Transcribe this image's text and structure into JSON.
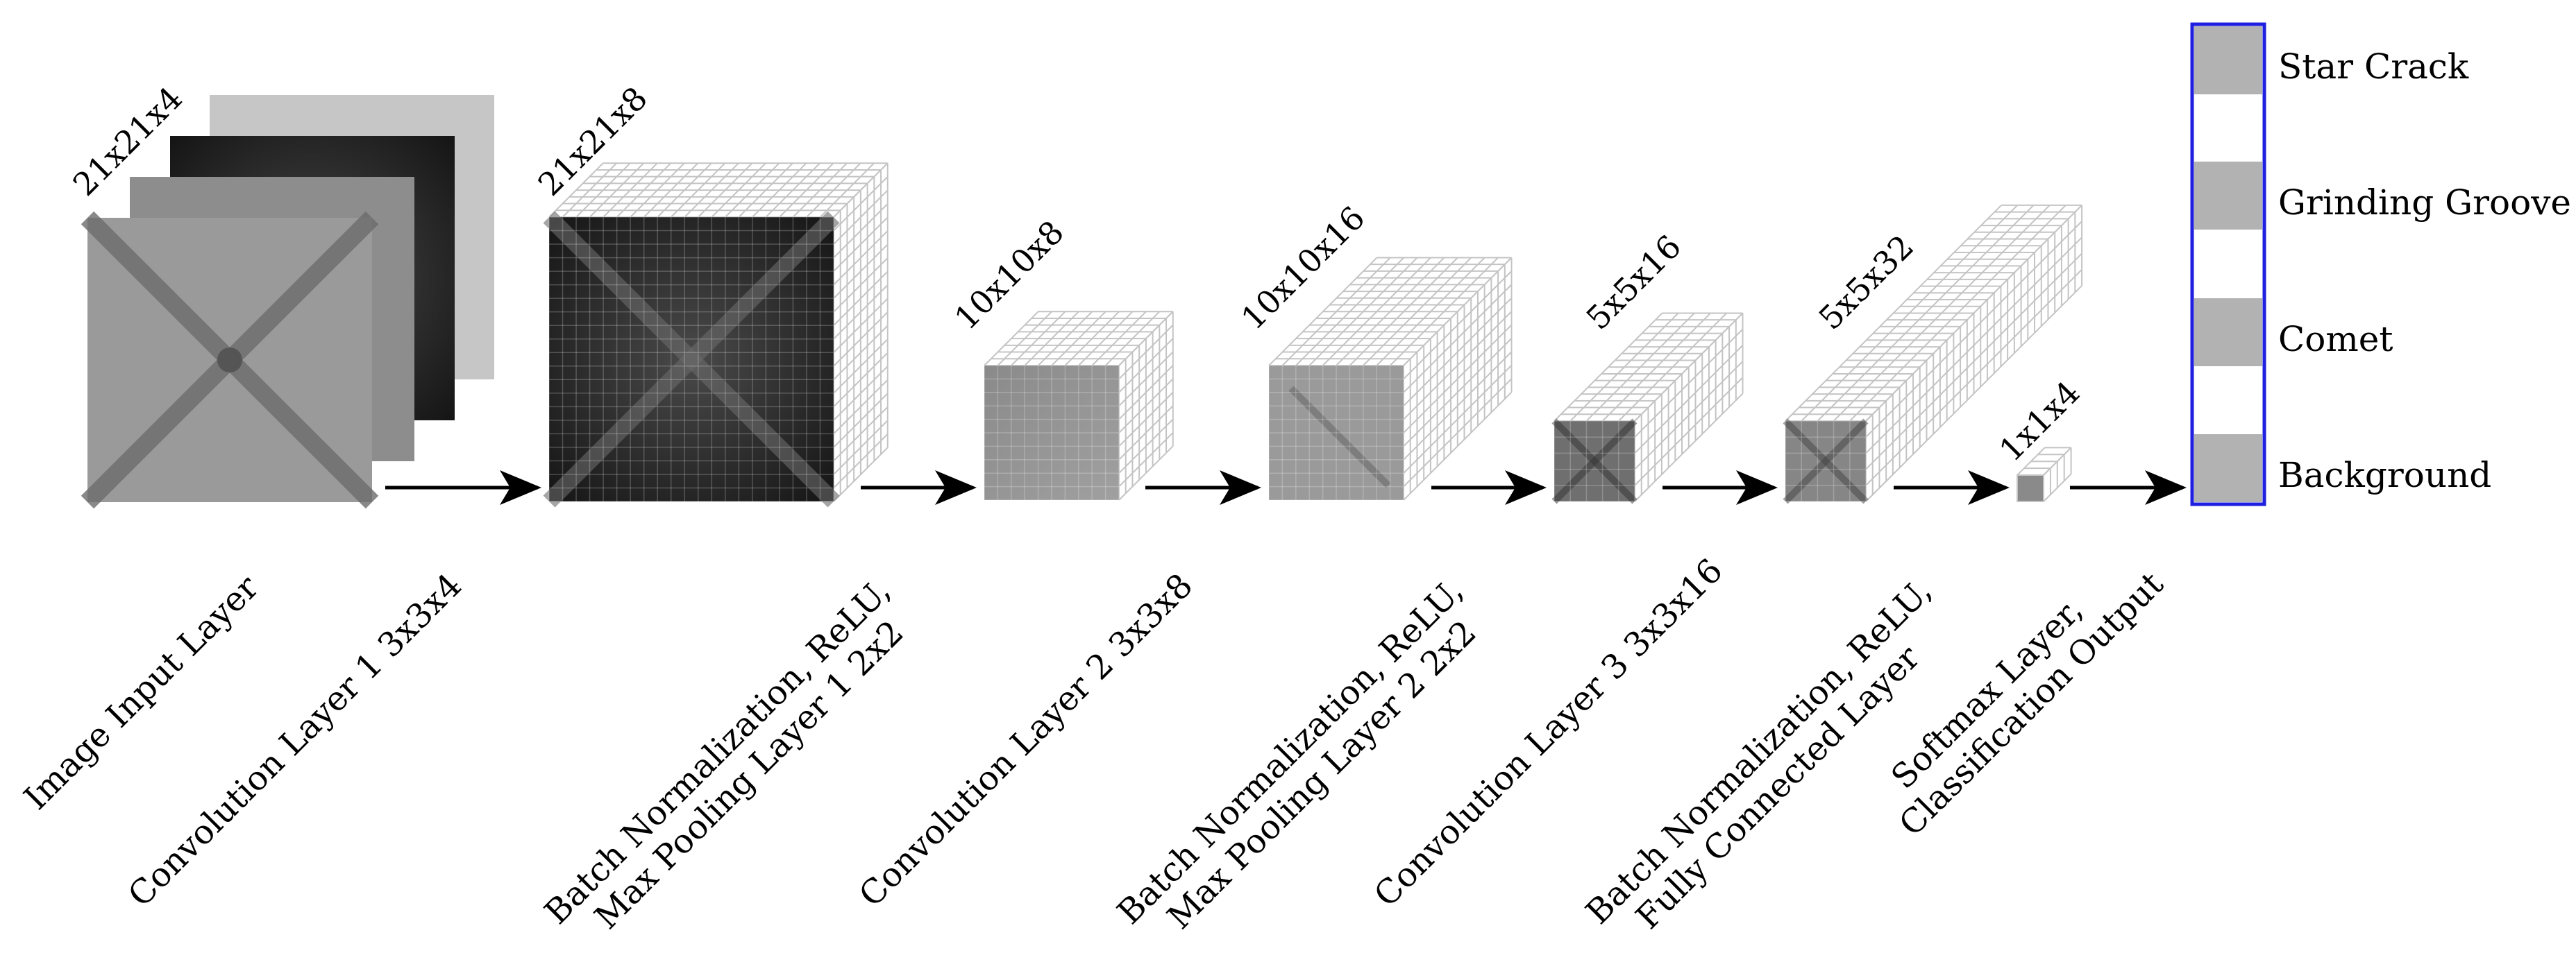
{
  "input_layer": {
    "dims": "21x21x4"
  },
  "feature_maps": [
    {
      "dims": "21x21x8"
    },
    {
      "dims": "10x10x8"
    },
    {
      "dims": "10x10x16"
    },
    {
      "dims": "5x5x16"
    },
    {
      "dims": "5x5x32"
    },
    {
      "dims": "1x1x4"
    }
  ],
  "layer_labels": [
    {
      "lines": [
        "Image Input Layer"
      ]
    },
    {
      "lines": [
        "Convolution Layer 1 3x3x4"
      ]
    },
    {
      "lines": [
        "Batch Normalization, ReLU,",
        "Max Pooling Layer 1 2x2"
      ]
    },
    {
      "lines": [
        "Convolution Layer 2 3x3x8"
      ]
    },
    {
      "lines": [
        "Batch Normalization, ReLU,",
        "Max Pooling Layer 2 2x2"
      ]
    },
    {
      "lines": [
        "Convolution Layer 3 3x3x16"
      ]
    },
    {
      "lines": [
        "Batch Normalization, ReLU,",
        "Fully Connected Layer"
      ]
    },
    {
      "lines": [
        "Softmax Layer,",
        "Classification Output"
      ]
    }
  ],
  "output_classes": [
    "Star Crack",
    "Grinding Groove",
    "Comet",
    "Background"
  ],
  "colors": {
    "output_border": "#1f1fe0",
    "output_cell": "#b2b2b2",
    "grid_line": "#c4c4c4",
    "arrow": "#000000"
  }
}
